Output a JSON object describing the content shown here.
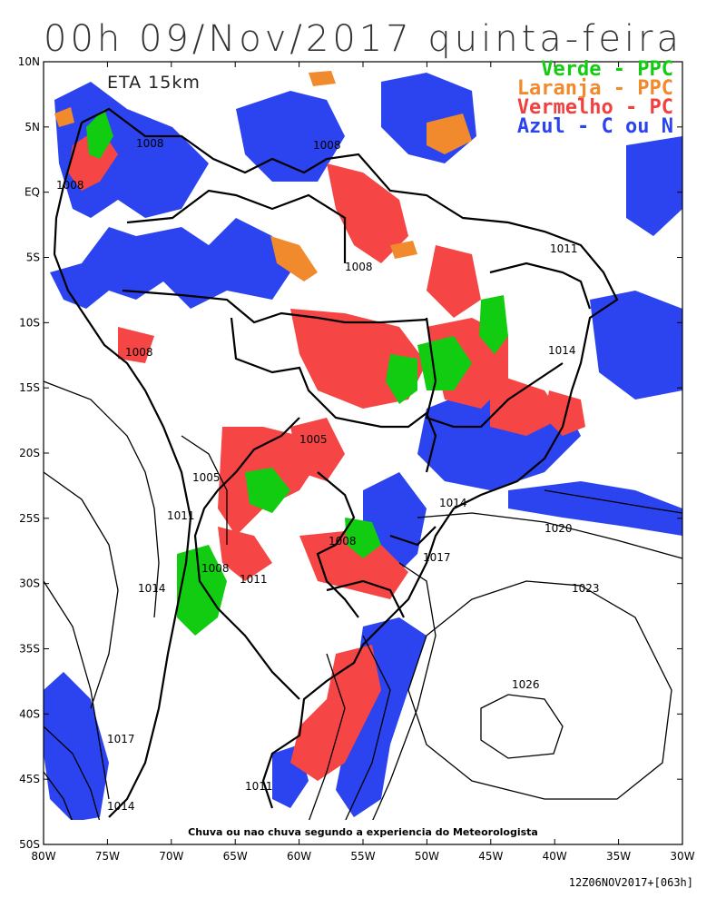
{
  "title": "00h 09/Nov/2017 quinta-feira",
  "model_label": "ETA 15km",
  "legend": {
    "green": "Verde - PPC",
    "orange": "Laranja - PPC",
    "red": "Vermelho - PC",
    "blue": "Azul - C ou N"
  },
  "caption": "Chuva ou nao chuva segundo a experiencia do Meteorologista",
  "footer": "12Z06NOV2017+[063h]",
  "axes": {
    "lat_labels": [
      "10N",
      "5N",
      "EQ",
      "5S",
      "10S",
      "15S",
      "20S",
      "25S",
      "30S",
      "35S",
      "40S",
      "45S",
      "50S"
    ],
    "lon_labels": [
      "80W",
      "75W",
      "70W",
      "65W",
      "60W",
      "55W",
      "50W",
      "45W",
      "40W",
      "35W",
      "30W"
    ]
  },
  "isobars": [
    {
      "label": "1008"
    },
    {
      "label": "1008"
    },
    {
      "label": "1008"
    },
    {
      "label": "1008"
    },
    {
      "label": "1008"
    },
    {
      "label": "1011"
    },
    {
      "label": "1014"
    },
    {
      "label": "1005"
    },
    {
      "label": "1005"
    },
    {
      "label": "1011"
    },
    {
      "label": "1014"
    },
    {
      "label": "1020"
    },
    {
      "label": "1008"
    },
    {
      "label": "1017"
    },
    {
      "label": "1008"
    },
    {
      "label": "1011"
    },
    {
      "label": "1014"
    },
    {
      "label": "1023"
    },
    {
      "label": "1026"
    },
    {
      "label": "1017"
    },
    {
      "label": "1014"
    },
    {
      "label": "1011"
    }
  ],
  "colors": {
    "green": "#11cc11",
    "orange": "#f08a2c",
    "red": "#f54545",
    "blue": "#2b44f0"
  }
}
